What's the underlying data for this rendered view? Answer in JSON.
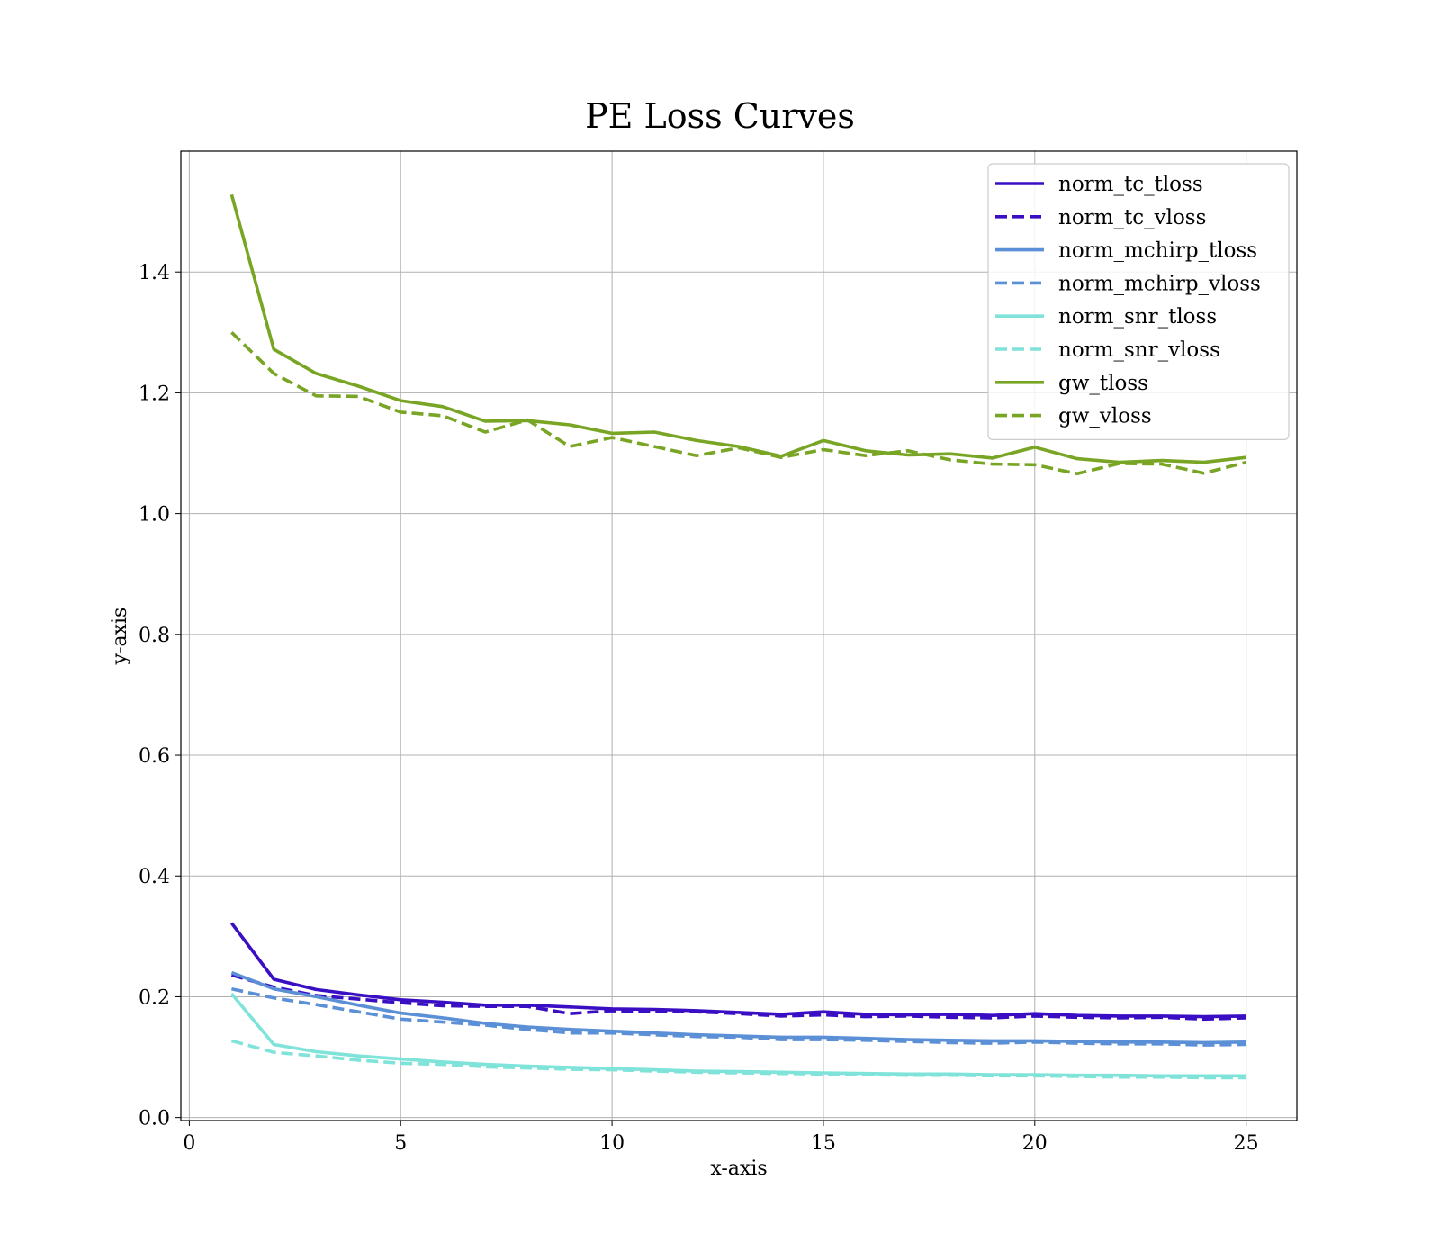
{
  "chart_data": {
    "type": "line",
    "title": "PE Loss Curves",
    "xlabel": "x-axis",
    "ylabel": "y-axis",
    "xlim": [
      -0.2,
      26.2
    ],
    "ylim": [
      -0.005,
      1.6
    ],
    "xticks": [
      0,
      5,
      10,
      15,
      20,
      25
    ],
    "xtick_labels": [
      "0",
      "5",
      "10",
      "15",
      "20",
      "25"
    ],
    "yticks": [
      0.0,
      0.2,
      0.4,
      0.6,
      0.8,
      1.0,
      1.2,
      1.4
    ],
    "ytick_labels": [
      "0.0",
      "0.2",
      "0.4",
      "0.6",
      "0.8",
      "1.0",
      "1.2",
      "1.4"
    ],
    "grid": true,
    "legend_position": "top-right",
    "x": [
      1,
      2,
      3,
      4,
      5,
      6,
      7,
      8,
      9,
      10,
      11,
      12,
      13,
      14,
      15,
      16,
      17,
      18,
      19,
      20,
      21,
      22,
      23,
      24,
      25
    ],
    "series": [
      {
        "name": "norm_tc_tloss",
        "color": "#3a0fc4",
        "dash": "solid",
        "values": [
          0.322,
          0.229,
          0.212,
          0.203,
          0.195,
          0.191,
          0.186,
          0.186,
          0.183,
          0.18,
          0.179,
          0.177,
          0.174,
          0.171,
          0.175,
          0.171,
          0.17,
          0.171,
          0.169,
          0.172,
          0.169,
          0.168,
          0.168,
          0.167,
          0.168
        ]
      },
      {
        "name": "norm_tc_vloss",
        "color": "#3a0fc4",
        "dash": "dashed",
        "values": [
          0.236,
          0.216,
          0.202,
          0.196,
          0.19,
          0.185,
          0.184,
          0.184,
          0.172,
          0.177,
          0.175,
          0.175,
          0.172,
          0.168,
          0.17,
          0.167,
          0.168,
          0.166,
          0.165,
          0.168,
          0.166,
          0.165,
          0.166,
          0.163,
          0.165
        ]
      },
      {
        "name": "norm_mchirp_tloss",
        "color": "#5b8fd6",
        "dash": "solid",
        "values": [
          0.24,
          0.213,
          0.2,
          0.186,
          0.173,
          0.165,
          0.156,
          0.15,
          0.146,
          0.143,
          0.14,
          0.137,
          0.135,
          0.133,
          0.133,
          0.131,
          0.129,
          0.128,
          0.127,
          0.127,
          0.126,
          0.125,
          0.125,
          0.124,
          0.125
        ]
      },
      {
        "name": "norm_mchirp_vloss",
        "color": "#5b8fd6",
        "dash": "dashed",
        "values": [
          0.213,
          0.198,
          0.187,
          0.175,
          0.163,
          0.158,
          0.153,
          0.146,
          0.14,
          0.14,
          0.137,
          0.134,
          0.133,
          0.129,
          0.129,
          0.128,
          0.126,
          0.124,
          0.123,
          0.125,
          0.123,
          0.122,
          0.122,
          0.12,
          0.121
        ]
      },
      {
        "name": "norm_snr_tloss",
        "color": "#7fe3da",
        "dash": "solid",
        "values": [
          0.205,
          0.121,
          0.109,
          0.102,
          0.097,
          0.092,
          0.088,
          0.085,
          0.083,
          0.081,
          0.079,
          0.077,
          0.076,
          0.075,
          0.074,
          0.073,
          0.072,
          0.072,
          0.071,
          0.071,
          0.07,
          0.07,
          0.069,
          0.069,
          0.069
        ]
      },
      {
        "name": "norm_snr_vloss",
        "color": "#7fe3da",
        "dash": "dashed",
        "values": [
          0.127,
          0.108,
          0.102,
          0.095,
          0.09,
          0.088,
          0.084,
          0.082,
          0.08,
          0.079,
          0.077,
          0.075,
          0.074,
          0.073,
          0.072,
          0.071,
          0.07,
          0.07,
          0.069,
          0.069,
          0.068,
          0.067,
          0.067,
          0.066,
          0.066
        ]
      },
      {
        "name": "gw_tloss",
        "color": "#78a524",
        "dash": "solid",
        "values": [
          1.528,
          1.272,
          1.232,
          1.211,
          1.187,
          1.177,
          1.153,
          1.154,
          1.147,
          1.133,
          1.135,
          1.121,
          1.111,
          1.095,
          1.121,
          1.104,
          1.097,
          1.099,
          1.092,
          1.11,
          1.091,
          1.085,
          1.088,
          1.085,
          1.093
        ]
      },
      {
        "name": "gw_vloss",
        "color": "#78a524",
        "dash": "dashed",
        "values": [
          1.3,
          1.232,
          1.195,
          1.194,
          1.168,
          1.162,
          1.135,
          1.155,
          1.111,
          1.126,
          1.111,
          1.096,
          1.109,
          1.093,
          1.106,
          1.096,
          1.104,
          1.089,
          1.082,
          1.081,
          1.066,
          1.083,
          1.082,
          1.067,
          1.085
        ]
      }
    ]
  }
}
